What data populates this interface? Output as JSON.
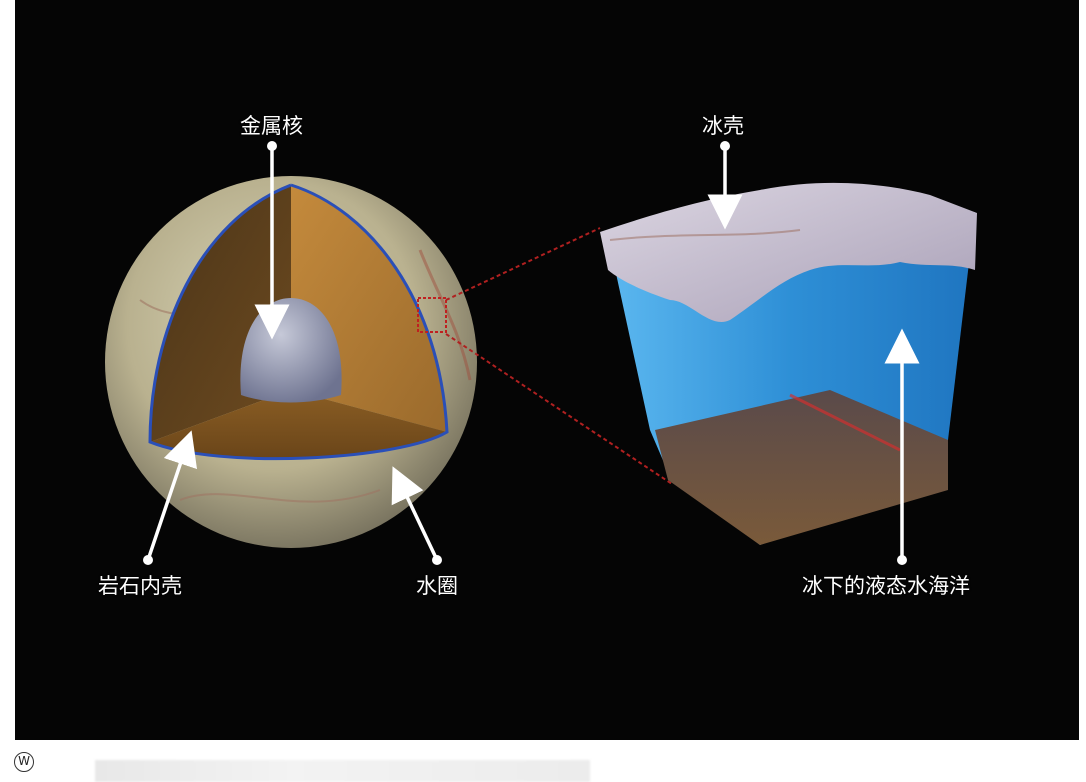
{
  "labels": {
    "metal_core": "金属核",
    "ice_shell": "冰壳",
    "rock_mantle": "岩石内壳",
    "water_layer": "水圈",
    "subsurface_ocean": "冰下的液态水海洋"
  },
  "footer": {
    "logo_glyph": "W"
  },
  "colors": {
    "background": "#050505",
    "rock_mantle": "#9a6a2c",
    "metal_core": "#8e93aa",
    "ocean": "#2e8fd6",
    "ice": "#c9c3d4",
    "water_boundary": "#2a4fb8",
    "zoom_lines": "#b02020"
  }
}
